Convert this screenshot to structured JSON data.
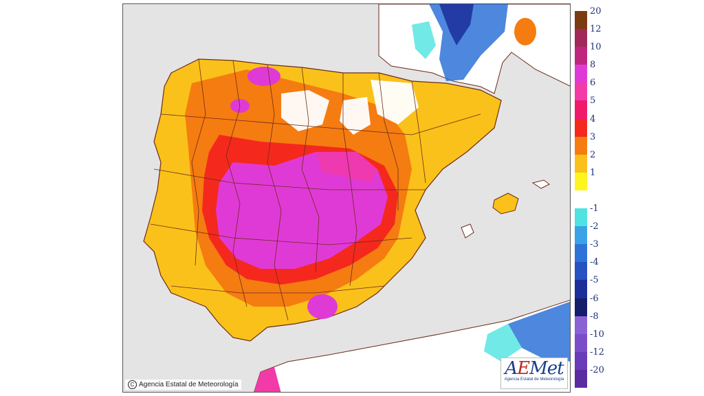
{
  "credit": {
    "symbol": "C",
    "text": "Agencia Estatal de Meteorología"
  },
  "logo": {
    "word_prefix": "A",
    "word_accent": "E",
    "word_suffix": "Met",
    "subtitle": "Agencia Estatal de Meteorología"
  },
  "legend": {
    "entries": [
      {
        "label": "20",
        "color": "#7a3b10"
      },
      {
        "label": "12",
        "color": "#a0295a"
      },
      {
        "label": "10",
        "color": "#c0257e"
      },
      {
        "label": "8",
        "color": "#e03ad6"
      },
      {
        "label": "6",
        "color": "#f23aa8"
      },
      {
        "label": "5",
        "color": "#f01a6a"
      },
      {
        "label": "4",
        "color": "#f5281e"
      },
      {
        "label": "3",
        "color": "#f57c10"
      },
      {
        "label": "2",
        "color": "#fac11a"
      },
      {
        "label": "1",
        "color": "#fff51e"
      },
      {
        "label": "",
        "color": "#ffffff"
      },
      {
        "label": "-1",
        "color": "#4ee3e0"
      },
      {
        "label": "-2",
        "color": "#3aa3e6"
      },
      {
        "label": "-3",
        "color": "#2e73d8"
      },
      {
        "label": "-4",
        "color": "#2652c2"
      },
      {
        "label": "-5",
        "color": "#1c2e9a"
      },
      {
        "label": "-6",
        "color": "#141e6a"
      },
      {
        "label": "-8",
        "color": "#8b62d4"
      },
      {
        "label": "-10",
        "color": "#7b4ec8"
      },
      {
        "label": "-12",
        "color": "#6a3cb8"
      },
      {
        "label": "-20",
        "color": "#5a2ca0"
      }
    ]
  },
  "colors": {
    "sea": "#e4e4e4",
    "land_frame": "#555555"
  }
}
